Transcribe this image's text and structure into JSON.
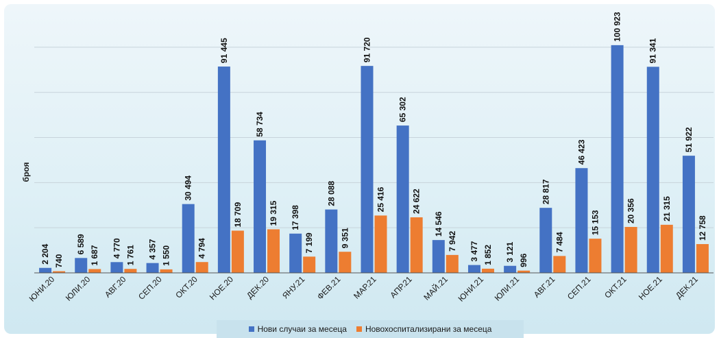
{
  "colors": {
    "series1": "#4472c4",
    "series2": "#ed7d31",
    "grid": "#c7d3db",
    "axis": "#555555"
  },
  "chart_data": {
    "type": "bar",
    "title": "",
    "xlabel": "",
    "ylabel": "броя",
    "ylim": [
      0,
      110000
    ],
    "grid": true,
    "legend_position": "bottom",
    "categories": [
      "ЮНИ.20",
      "ЮЛИ.20",
      "АВГ.20",
      "СЕП.20",
      "ОКТ.20",
      "НОЕ.20",
      "ДЕК.20",
      "ЯНУ.21",
      "ФЕВ.21",
      "МАР.21",
      "АПР.21",
      "МАЙ.21",
      "ЮНИ.21",
      "ЮЛИ.21",
      "АВГ.21",
      "СЕП.21",
      "ОКТ.21",
      "НОЕ.21",
      "ДЕК.21"
    ],
    "series": [
      {
        "name": "Нови случаи за месеца",
        "values": [
          2204,
          6589,
          4770,
          4357,
          30494,
          91445,
          58734,
          17398,
          28088,
          91720,
          65302,
          14546,
          3477,
          3121,
          28817,
          46423,
          100923,
          91341,
          51922
        ],
        "labels": [
          "2 204",
          "6 589",
          "4 770",
          "4 357",
          "30 494",
          "91 445",
          "58 734",
          "17 398",
          "28 088",
          "91 720",
          "65 302",
          "14 546",
          "3 477",
          "3 121",
          "28 817",
          "46 423",
          "100 923",
          "91 341",
          "51 922"
        ]
      },
      {
        "name": "Новохоспитализирани за месеца",
        "values": [
          740,
          1687,
          1761,
          1550,
          4794,
          18709,
          19315,
          7199,
          9351,
          25416,
          24622,
          7942,
          1852,
          996,
          7484,
          15153,
          20356,
          21315,
          12758
        ],
        "labels": [
          "740",
          "1 687",
          "1 761",
          "1 550",
          "4 794",
          "18 709",
          "19 315",
          "7 199",
          "9 351",
          "25 416",
          "24 622",
          "7 942",
          "1 852",
          "996",
          "7 484",
          "15 153",
          "20 356",
          "21 315",
          "12 758"
        ]
      }
    ]
  }
}
